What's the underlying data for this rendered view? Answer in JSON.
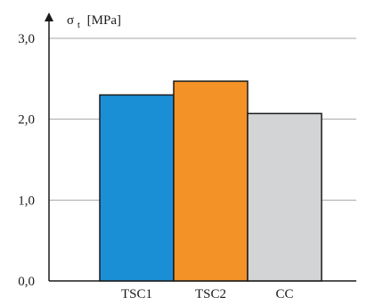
{
  "chart_data": {
    "type": "bar",
    "title": "",
    "xlabel": "",
    "ylabel": "σ",
    "ylabel_subscript": "t",
    "ylabel_unit": "[MPa]",
    "categories": [
      "TSC1",
      "TSC2",
      "CC"
    ],
    "values": [
      2.3,
      2.47,
      2.07
    ],
    "colors": [
      "#1a8fd6",
      "#f39226",
      "#d3d4d6"
    ],
    "ylim": [
      0,
      3
    ],
    "yticks": [
      0,
      1,
      2,
      3
    ],
    "ytick_labels": [
      "0,0",
      "1,0",
      "2,0",
      "3,0"
    ],
    "grid": true,
    "legend": "none"
  }
}
